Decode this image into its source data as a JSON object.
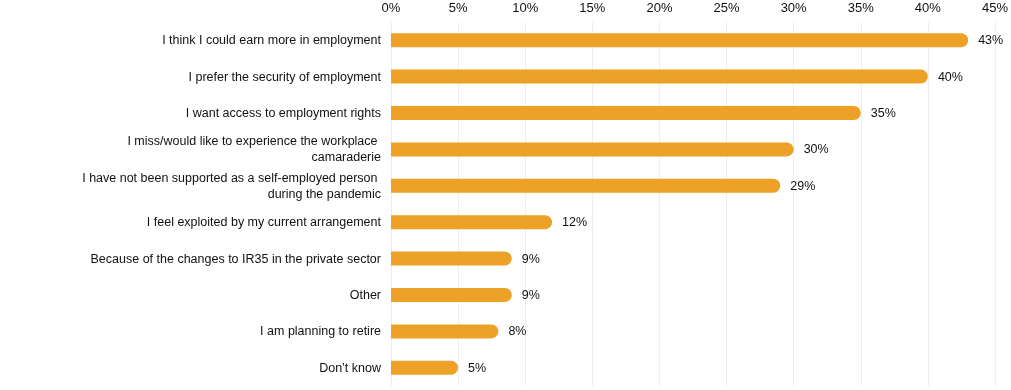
{
  "chart_data": {
    "type": "bar",
    "orientation": "horizontal",
    "categories": [
      "I think I could earn more in employment",
      "I prefer the security of employment",
      "I want access to employment rights",
      "I miss/would like to experience the workplace camaraderie",
      "I have not been supported as a self-employed person during the pandemic",
      "I feel exploited by my current arrangement",
      "Because of the changes to IR35 in the private sector",
      "Other",
      "I am planning to retire",
      "Don’t know"
    ],
    "values": [
      43,
      40,
      35,
      30,
      29,
      12,
      9,
      9,
      8,
      5
    ],
    "value_labels": [
      "43%",
      "40%",
      "35%",
      "30%",
      "29%",
      "12%",
      "9%",
      "9%",
      "8%",
      "5%"
    ],
    "color": "#eda127",
    "xlim": [
      0,
      45
    ],
    "xticks": [
      {
        "value": 0,
        "label": "0%"
      },
      {
        "value": 5,
        "label": "5%"
      },
      {
        "value": 10,
        "label": "10%"
      },
      {
        "value": 15,
        "label": "15%"
      },
      {
        "value": 20,
        "label": "20%"
      },
      {
        "value": 25,
        "label": "25%"
      },
      {
        "value": 30,
        "label": "30%"
      },
      {
        "value": 35,
        "label": "35%"
      },
      {
        "value": 40,
        "label": "40%"
      },
      {
        "value": 45,
        "label": "45%"
      }
    ],
    "grid": "x"
  }
}
